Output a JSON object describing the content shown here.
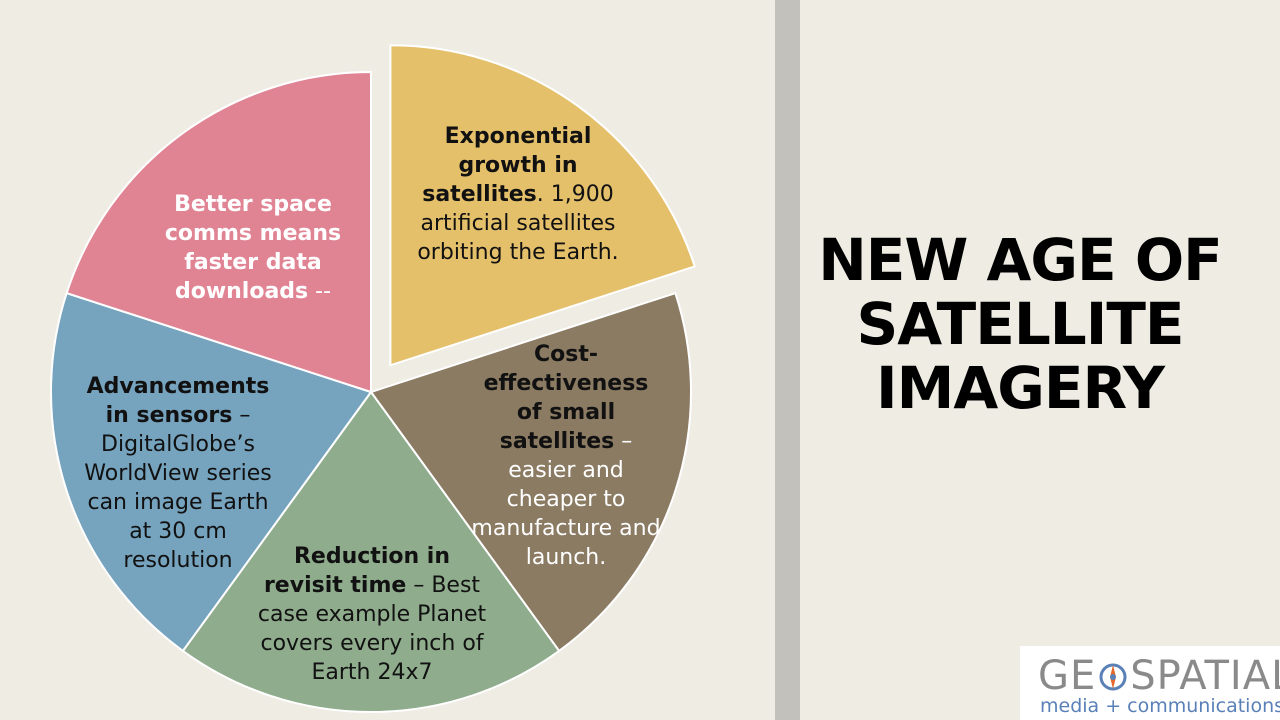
{
  "title": [
    "NEW AGE OF",
    "SATELLITE",
    "IMAGERY"
  ],
  "segments": [
    {
      "id": "exponential-growth",
      "bold": "Exponential growth in satellites",
      "text": ". 1,900 artificial satellites orbiting the Earth.",
      "color": "#e5c06b",
      "text_color": "#111111"
    },
    {
      "id": "cost-effectiveness",
      "bold": "Cost-effectiveness of small satellites",
      "text": " – easier and cheaper to manufacture and launch.",
      "color": "#8b7b63",
      "text_color": "#ffffff"
    },
    {
      "id": "revisit-time",
      "bold": "Reduction in revisit time",
      "text": " – Best case example Planet covers every inch of Earth 24x7",
      "color": "#8fac8d",
      "text_color": "#111111"
    },
    {
      "id": "advancements-sensors",
      "bold": "Advancements in sensors",
      "text": " – DigitalGlobe’s WorldView series can image Earth at 30 cm resolution",
      "color": "#76a3be",
      "text_color": "#111111"
    },
    {
      "id": "space-comms",
      "bold": "Better space comms means faster data downloads",
      "text": " --",
      "color": "#e08494",
      "text_color": "#ffffff"
    }
  ],
  "logo": {
    "main_left": "GE",
    "main_right": "SPATIAL",
    "sub": "media + communications",
    "brand_gray": "#8a8a8a",
    "brand_blue": "#5a80b8",
    "brand_orange": "#e8682c",
    "icon": "compass-icon"
  },
  "colors": {
    "background": "#efece4",
    "divider": "#c3c1bb"
  }
}
